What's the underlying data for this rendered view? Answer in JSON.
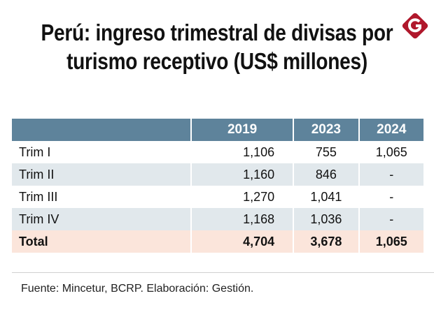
{
  "title": "Perú: ingreso trimestral de divisas por turismo receptivo (US$ millones)",
  "logo": {
    "letter": "G",
    "color": "#b0182c"
  },
  "colors": {
    "header": "#5e839b",
    "alt_row": "#e1e8ec",
    "total_row": "#fbe5db"
  },
  "chart_data": {
    "type": "table",
    "title": "Perú: ingreso trimestral de divisas por turismo receptivo (US$ millones)",
    "columns": [
      "",
      "2019",
      "2023",
      "2024"
    ],
    "rows": [
      [
        "Trim I",
        "1,106",
        "755",
        "1,065"
      ],
      [
        "Trim II",
        "1,160",
        "846",
        "-"
      ],
      [
        "Trim III",
        "1,270",
        "1,041",
        "-"
      ],
      [
        "Trim IV",
        "1,168",
        "1,036",
        "-"
      ],
      [
        "Total",
        "4,704",
        "3,678",
        "1,065"
      ]
    ]
  },
  "source": "Fuente: Mincetur, BCRP. Elaboración: Gestión."
}
